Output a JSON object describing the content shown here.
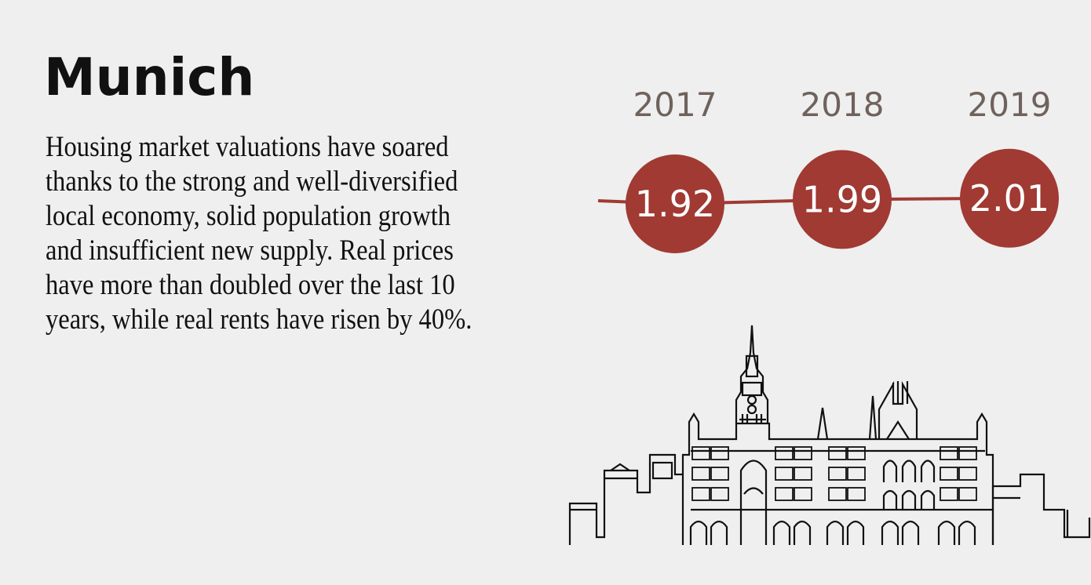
{
  "title": "Munich",
  "body": "Housing market valuations have soared thanks to the strong and well-diversified local economy, solid population growth and insufficient new supply. Real prices have more than doubled over the last 10 years, while real rents have risen by 40%.",
  "colors": {
    "background": "#efefef",
    "accent": "#a03a33",
    "year_text": "#6f625c",
    "text": "#111111"
  },
  "chart_data": {
    "type": "line",
    "x": [
      "2017",
      "2018",
      "2019"
    ],
    "categories": [
      "2017",
      "2018",
      "2019"
    ],
    "values": [
      1.92,
      1.99,
      2.01
    ],
    "value_labels": [
      "1.92",
      "1.99",
      "2.01"
    ],
    "title": "",
    "xlabel": "",
    "ylabel": "",
    "grid": false
  },
  "illustration": {
    "icon": "munich-city-hall-skyline-icon"
  }
}
